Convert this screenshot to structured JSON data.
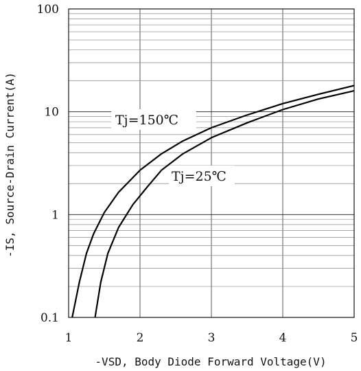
{
  "chart_data": {
    "type": "line",
    "xlabel": "-VSD, Body Diode Forward Voltage(V)",
    "ylabel": "-IS, Source-Drain Current(A)",
    "xlim": [
      1,
      5
    ],
    "ylim": [
      0.1,
      100
    ],
    "yscale": "log",
    "grid": true,
    "x_ticks": [
      "1",
      "2",
      "3",
      "4",
      "5"
    ],
    "y_ticks": [
      "0.1",
      "1",
      "10",
      "100"
    ],
    "series": [
      {
        "name": "Tj=150℃",
        "x": [
          1.05,
          1.15,
          1.25,
          1.35,
          1.5,
          1.7,
          2.0,
          2.3,
          2.6,
          3.0,
          3.5,
          4.0,
          4.5,
          5.0
        ],
        "y": [
          0.1,
          0.22,
          0.42,
          0.65,
          1.05,
          1.65,
          2.7,
          3.9,
          5.2,
          7.0,
          9.3,
          12.0,
          14.8,
          18.0
        ]
      },
      {
        "name": "Tj=25℃",
        "x": [
          1.37,
          1.45,
          1.55,
          1.7,
          1.9,
          2.1,
          2.3,
          2.6,
          3.0,
          3.5,
          4.0,
          4.5,
          5.0
        ],
        "y": [
          0.1,
          0.22,
          0.42,
          0.75,
          1.25,
          1.85,
          2.7,
          3.9,
          5.6,
          7.8,
          10.5,
          13.3,
          16.0
        ]
      }
    ]
  }
}
